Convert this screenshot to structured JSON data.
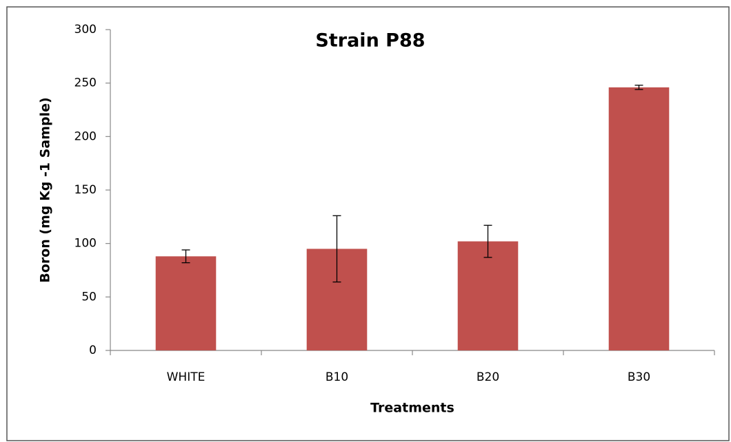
{
  "chart_data": {
    "type": "bar",
    "title": "Strain P88",
    "x_label": "Treatments",
    "y_label": "Boron (mg Kg -1 Sample)",
    "categories": [
      "WHITE",
      "B10",
      "B20",
      "B30"
    ],
    "values": [
      88,
      95,
      102,
      246
    ],
    "errors": [
      6,
      31,
      15,
      2
    ],
    "color": "#c0504d",
    "ylim": [
      0,
      300
    ],
    "yticks": [
      0,
      50,
      100,
      150,
      200,
      250,
      300
    ],
    "grid": false
  }
}
